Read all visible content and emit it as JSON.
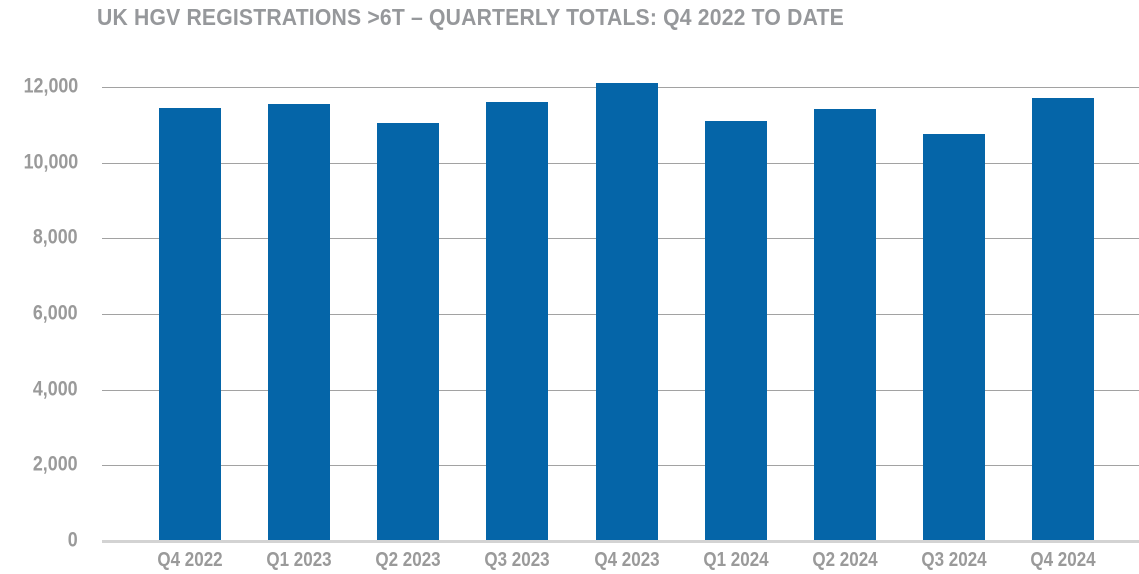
{
  "title": "UK HGV REGISTRATIONS >6T – QUARTERLY TOTALS: Q4 2022 TO DATE",
  "colors": {
    "bar": "#0565a8",
    "title_text": "#96989b",
    "tick_text": "#9a9a9a",
    "gridline": "#a2a2a2",
    "zero_line": "#d3d3d3",
    "background": "#ffffff"
  },
  "chart_data": {
    "type": "bar",
    "title": "UK HGV REGISTRATIONS >6T – QUARTERLY TOTALS: Q4 2022 TO DATE",
    "categories": [
      "Q4 2022",
      "Q1 2023",
      "Q2 2023",
      "Q3 2023",
      "Q4 2023",
      "Q1 2024",
      "Q2 2024",
      "Q3 2024",
      "Q4 2024"
    ],
    "values": [
      11450,
      11550,
      11050,
      11600,
      12100,
      11100,
      11430,
      10770,
      11700
    ],
    "xlabel": "",
    "ylabel": "",
    "ylim": [
      0,
      12000
    ],
    "yticks": [
      0,
      2000,
      4000,
      6000,
      8000,
      10000,
      12000
    ],
    "ytick_labels": [
      "0",
      "2,000",
      "4,000",
      "6,000",
      "8,000",
      "10,000",
      "12,000"
    ],
    "grid": "horizontal",
    "legend": "none",
    "bar_color": "#0565a8"
  }
}
